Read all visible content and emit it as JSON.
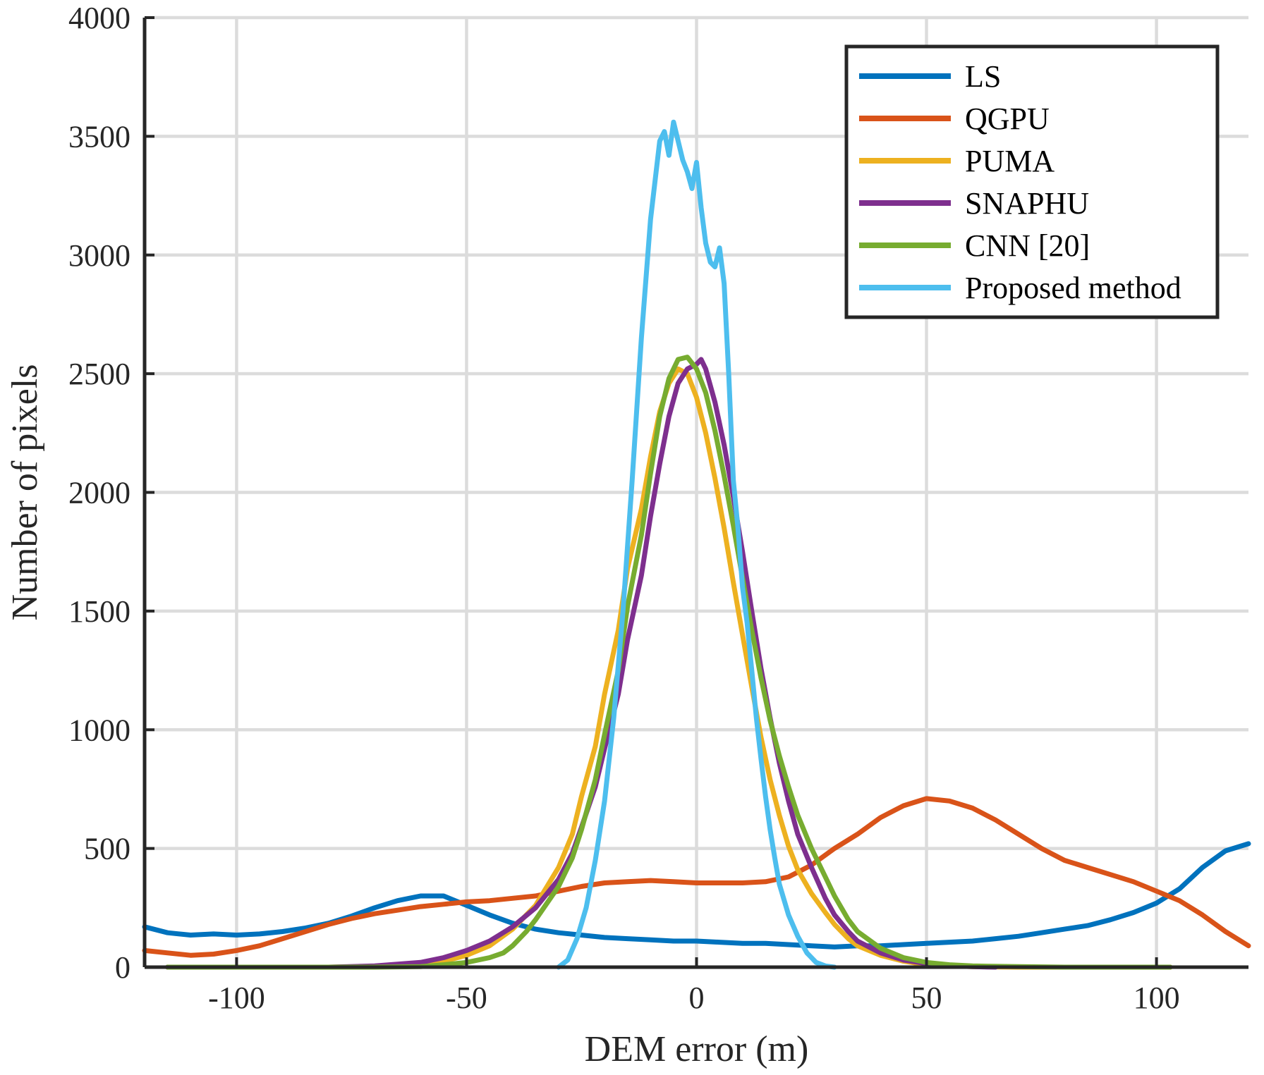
{
  "chart_data": {
    "type": "line",
    "title": "",
    "xlabel": "DEM error (m)",
    "ylabel": "Number of pixels",
    "xlim": [
      -120,
      120
    ],
    "ylim": [
      0,
      4000
    ],
    "xticks": [
      -100,
      -50,
      0,
      50,
      100
    ],
    "yticks": [
      0,
      500,
      1000,
      1500,
      2000,
      2500,
      3000,
      3500,
      4000
    ],
    "xtick_labels": [
      "-100",
      "-50",
      "0",
      "50",
      "100"
    ],
    "ytick_labels": [
      "0",
      "500",
      "1000",
      "1500",
      "2000",
      "2500",
      "3000",
      "3500",
      "4000"
    ],
    "grid": true,
    "legend_position": "top-right",
    "series": [
      {
        "name": "LS",
        "color": "#0072BD",
        "x": [
          -120,
          -115,
          -110,
          -105,
          -100,
          -95,
          -90,
          -85,
          -80,
          -75,
          -70,
          -65,
          -60,
          -55,
          -50,
          -45,
          -40,
          -35,
          -30,
          -25,
          -20,
          -15,
          -10,
          -5,
          0,
          5,
          10,
          15,
          20,
          25,
          30,
          35,
          40,
          45,
          50,
          55,
          60,
          65,
          70,
          75,
          80,
          85,
          90,
          95,
          100,
          105,
          110,
          115,
          120
        ],
        "values": [
          170,
          145,
          135,
          140,
          135,
          140,
          150,
          165,
          185,
          215,
          250,
          280,
          300,
          300,
          260,
          220,
          185,
          160,
          145,
          135,
          125,
          120,
          115,
          110,
          110,
          105,
          100,
          100,
          95,
          90,
          85,
          90,
          90,
          95,
          100,
          105,
          110,
          120,
          130,
          145,
          160,
          175,
          200,
          230,
          270,
          330,
          420,
          490,
          520
        ]
      },
      {
        "name": "QGPU",
        "color": "#D95319",
        "x": [
          -120,
          -115,
          -110,
          -105,
          -100,
          -95,
          -90,
          -85,
          -80,
          -75,
          -70,
          -65,
          -60,
          -55,
          -50,
          -45,
          -40,
          -35,
          -30,
          -25,
          -20,
          -15,
          -10,
          -5,
          0,
          5,
          10,
          15,
          20,
          25,
          30,
          35,
          40,
          45,
          50,
          55,
          60,
          65,
          70,
          75,
          80,
          85,
          90,
          95,
          100,
          105,
          110,
          115,
          120
        ],
        "values": [
          70,
          60,
          50,
          55,
          70,
          90,
          120,
          150,
          180,
          205,
          225,
          240,
          255,
          265,
          275,
          280,
          290,
          300,
          320,
          340,
          355,
          360,
          365,
          360,
          355,
          355,
          355,
          360,
          380,
          430,
          500,
          560,
          630,
          680,
          710,
          700,
          670,
          620,
          560,
          500,
          450,
          420,
          390,
          360,
          320,
          280,
          220,
          150,
          90
        ]
      },
      {
        "name": "PUMA",
        "color": "#EDB120",
        "x": [
          -115,
          -100,
          -90,
          -80,
          -70,
          -60,
          -55,
          -50,
          -45,
          -40,
          -35,
          -30,
          -27,
          -25,
          -22,
          -20,
          -17,
          -15,
          -12,
          -10,
          -8,
          -6,
          -4,
          -2,
          0,
          2,
          4,
          6,
          8,
          10,
          12,
          14,
          16,
          18,
          20,
          22,
          25,
          28,
          30,
          33,
          35,
          40,
          45,
          50,
          55,
          60,
          70,
          80,
          90,
          103
        ],
        "values": [
          0,
          0,
          0,
          0,
          2,
          10,
          25,
          50,
          90,
          160,
          260,
          420,
          560,
          720,
          930,
          1150,
          1420,
          1680,
          1930,
          2150,
          2340,
          2460,
          2520,
          2500,
          2400,
          2250,
          2060,
          1850,
          1620,
          1400,
          1180,
          970,
          790,
          640,
          510,
          410,
          310,
          230,
          180,
          120,
          90,
          50,
          25,
          10,
          5,
          2,
          0,
          0,
          0,
          0
        ]
      },
      {
        "name": "SNAPHU",
        "color": "#7E2F8E",
        "x": [
          -115,
          -100,
          -90,
          -80,
          -70,
          -60,
          -55,
          -50,
          -45,
          -40,
          -35,
          -30,
          -27,
          -25,
          -22,
          -20,
          -17,
          -15,
          -12,
          -10,
          -8,
          -6,
          -4,
          -2,
          0,
          1,
          2,
          4,
          6,
          8,
          10,
          12,
          14,
          16,
          18,
          20,
          22,
          25,
          28,
          30,
          33,
          35,
          40,
          45,
          50,
          55,
          60,
          65
        ],
        "values": [
          0,
          0,
          0,
          0,
          5,
          20,
          40,
          70,
          110,
          170,
          250,
          370,
          480,
          590,
          760,
          920,
          1150,
          1380,
          1650,
          1900,
          2120,
          2320,
          2460,
          2520,
          2540,
          2560,
          2520,
          2380,
          2200,
          1980,
          1750,
          1500,
          1260,
          1050,
          860,
          700,
          560,
          420,
          290,
          220,
          150,
          110,
          60,
          30,
          15,
          5,
          2,
          0
        ]
      },
      {
        "name": "CNN [20]",
        "color": "#77AC30",
        "x": [
          -115,
          -100,
          -90,
          -80,
          -70,
          -60,
          -55,
          -50,
          -45,
          -42,
          -40,
          -37,
          -35,
          -30,
          -27,
          -25,
          -22,
          -20,
          -17,
          -15,
          -12,
          -10,
          -8,
          -6,
          -4,
          -2,
          0,
          2,
          4,
          6,
          8,
          10,
          12,
          14,
          16,
          18,
          20,
          22,
          25,
          28,
          30,
          33,
          35,
          40,
          45,
          50,
          55,
          60,
          70,
          80,
          90,
          103
        ],
        "values": [
          0,
          0,
          0,
          0,
          0,
          2,
          10,
          20,
          40,
          60,
          90,
          150,
          200,
          340,
          460,
          580,
          790,
          980,
          1250,
          1520,
          1820,
          2080,
          2320,
          2480,
          2560,
          2570,
          2520,
          2420,
          2260,
          2070,
          1860,
          1640,
          1420,
          1220,
          1040,
          890,
          760,
          640,
          500,
          380,
          300,
          200,
          150,
          80,
          40,
          20,
          10,
          5,
          2,
          0,
          0,
          0
        ]
      },
      {
        "name": "Proposed method",
        "color": "#4DBEEE",
        "x": [
          -30,
          -28,
          -26,
          -24,
          -22,
          -20,
          -18,
          -16,
          -14,
          -12,
          -10,
          -8,
          -7,
          -6,
          -5,
          -4,
          -3,
          -2,
          -1,
          0,
          1,
          2,
          3,
          4,
          5,
          6,
          7,
          8,
          9,
          10,
          11,
          12,
          13,
          14,
          15,
          16,
          17,
          18,
          20,
          22,
          24,
          26,
          28,
          30
        ],
        "values": [
          0,
          30,
          120,
          250,
          450,
          700,
          1050,
          1500,
          2050,
          2650,
          3150,
          3480,
          3520,
          3420,
          3560,
          3480,
          3400,
          3350,
          3280,
          3390,
          3200,
          3050,
          2970,
          2950,
          3030,
          2880,
          2500,
          2050,
          1850,
          1600,
          1450,
          1250,
          1050,
          880,
          720,
          580,
          460,
          350,
          220,
          130,
          60,
          20,
          5,
          0
        ]
      }
    ]
  }
}
